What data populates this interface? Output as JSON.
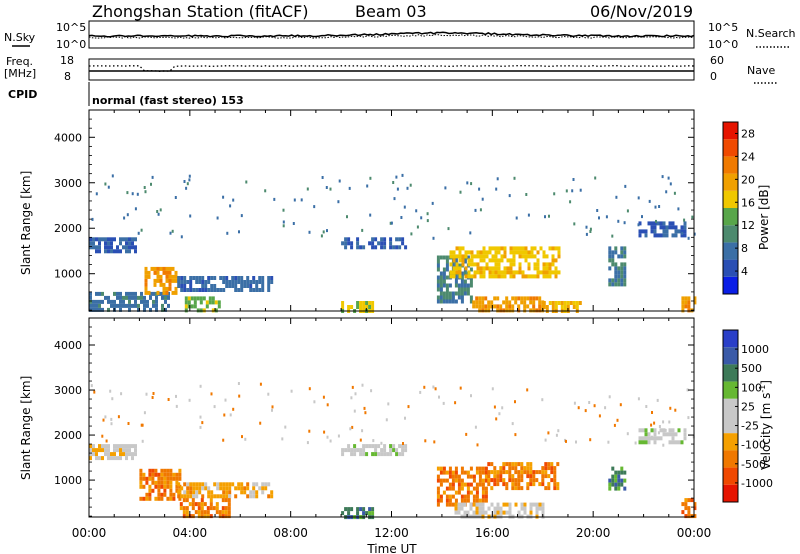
{
  "header": {
    "station": "Zhongshan Station (fitACF)",
    "beam": "Beam 03",
    "date": "06/Nov/2019",
    "mode": "normal (fast stereo) 153"
  },
  "summary_panels": {
    "nsky_label": "N.Sky",
    "nsearch_label": "N.Search",
    "freq_label": "Freq.",
    "freq_unit": "[MHz]",
    "nave_label": "Nave",
    "cpid_label": "CPID",
    "nsky_ticks": [
      "10^5",
      "10^0"
    ],
    "nsearch_ticks": [
      "10^5",
      "10^0"
    ],
    "freq_ticks": [
      "18",
      "8"
    ],
    "nave_ticks": [
      "60",
      "0"
    ]
  },
  "colors": {
    "power_scale": [
      "#0a1ee6",
      "#2a4fb4",
      "#3b6fa6",
      "#4d8a6e",
      "#58a64a",
      "#f0c800",
      "#f0a000",
      "#f07a00",
      "#f04a00",
      "#e61400"
    ],
    "velocity_scale": [
      "#2a3fc8",
      "#3a5aa8",
      "#3d7a58",
      "#66b832",
      "#c8c8c8",
      "#c8c8c8",
      "#f5a000",
      "#f07800",
      "#f04800",
      "#e61400"
    ]
  },
  "chart_data": [
    {
      "type": "heatmap",
      "title": "Power",
      "ylabel": "Slant Range [km]",
      "xlabel": "Time UT",
      "x_ticks": [
        "00:00",
        "04:00",
        "08:00",
        "12:00",
        "16:00",
        "20:00",
        "00:00"
      ],
      "x_range_hours": [
        0,
        24
      ],
      "y_ticks": [
        1000,
        2000,
        3000,
        4000
      ],
      "ylim": [
        180,
        4600
      ],
      "colorbar_label": "Power [dB]",
      "colorbar_ticks": [
        "4",
        "8",
        "12",
        "16",
        "20",
        "24",
        "28"
      ],
      "colorbar_range": [
        0,
        30
      ],
      "regions": [
        {
          "t": [
            0.0,
            1.9
          ],
          "r": [
            1450,
            1800
          ],
          "v": 6
        },
        {
          "t": [
            0.0,
            3.2
          ],
          "r": [
            180,
            600
          ],
          "v": 8
        },
        {
          "t": [
            2.2,
            3.5
          ],
          "r": [
            600,
            1150
          ],
          "v": 20
        },
        {
          "t": [
            3.5,
            7.2
          ],
          "r": [
            600,
            950
          ],
          "v": 7
        },
        {
          "t": [
            3.8,
            5.2
          ],
          "r": [
            180,
            500
          ],
          "v": 14
        },
        {
          "t": [
            10.0,
            12.6
          ],
          "r": [
            1550,
            1800
          ],
          "v": 6
        },
        {
          "t": [
            10.0,
            11.2
          ],
          "r": [
            180,
            400
          ],
          "v": 16
        },
        {
          "t": [
            13.8,
            15.2
          ],
          "r": [
            400,
            1400
          ],
          "v": 9
        },
        {
          "t": [
            14.3,
            18.6
          ],
          "r": [
            900,
            1600
          ],
          "v": 17
        },
        {
          "t": [
            15.2,
            18.0
          ],
          "r": [
            180,
            500
          ],
          "v": 20
        },
        {
          "t": [
            18.0,
            19.5
          ],
          "r": [
            180,
            400
          ],
          "v": 18
        },
        {
          "t": [
            20.6,
            21.2
          ],
          "r": [
            800,
            1600
          ],
          "v": 9
        },
        {
          "t": [
            21.8,
            23.7
          ],
          "r": [
            1850,
            2150
          ],
          "v": 6
        },
        {
          "t": [
            23.5,
            24.0
          ],
          "r": [
            180,
            500
          ],
          "v": 20
        }
      ]
    },
    {
      "type": "heatmap",
      "title": "Velocity",
      "ylabel": "Slant Range [km]",
      "xlabel": "Time UT",
      "x_ticks": [
        "00:00",
        "04:00",
        "08:00",
        "12:00",
        "16:00",
        "20:00",
        "00:00"
      ],
      "x_range_hours": [
        0,
        24
      ],
      "y_ticks": [
        1000,
        2000,
        3000,
        4000
      ],
      "ylim": [
        180,
        4600
      ],
      "colorbar_label": "Velocity [m s^-1]",
      "colorbar_ticks": [
        "1000",
        "500",
        "100",
        "25",
        "-25",
        "-100",
        "-500",
        "-1000"
      ],
      "regions": [
        {
          "t": [
            0.0,
            1.9
          ],
          "r": [
            1450,
            1800
          ],
          "v": -20
        },
        {
          "t": [
            2.0,
            3.6
          ],
          "r": [
            600,
            1250
          ],
          "v": -300
        },
        {
          "t": [
            3.5,
            7.2
          ],
          "r": [
            600,
            950
          ],
          "v": -80
        },
        {
          "t": [
            3.6,
            5.6
          ],
          "r": [
            180,
            600
          ],
          "v": -250
        },
        {
          "t": [
            10.0,
            12.6
          ],
          "r": [
            1550,
            1800
          ],
          "v": 10
        },
        {
          "t": [
            10.0,
            11.2
          ],
          "r": [
            180,
            400
          ],
          "v": 200
        },
        {
          "t": [
            13.8,
            15.8
          ],
          "r": [
            500,
            1300
          ],
          "v": -350
        },
        {
          "t": [
            15.8,
            18.6
          ],
          "r": [
            800,
            1400
          ],
          "v": -450
        },
        {
          "t": [
            14.5,
            18.0
          ],
          "r": [
            180,
            500
          ],
          "v": -20
        },
        {
          "t": [
            20.6,
            21.2
          ],
          "r": [
            800,
            1300
          ],
          "v": 150
        },
        {
          "t": [
            21.8,
            23.7
          ],
          "r": [
            1850,
            2150
          ],
          "v": 10
        },
        {
          "t": [
            23.5,
            24.0
          ],
          "r": [
            180,
            600
          ],
          "v": -400
        }
      ]
    }
  ]
}
